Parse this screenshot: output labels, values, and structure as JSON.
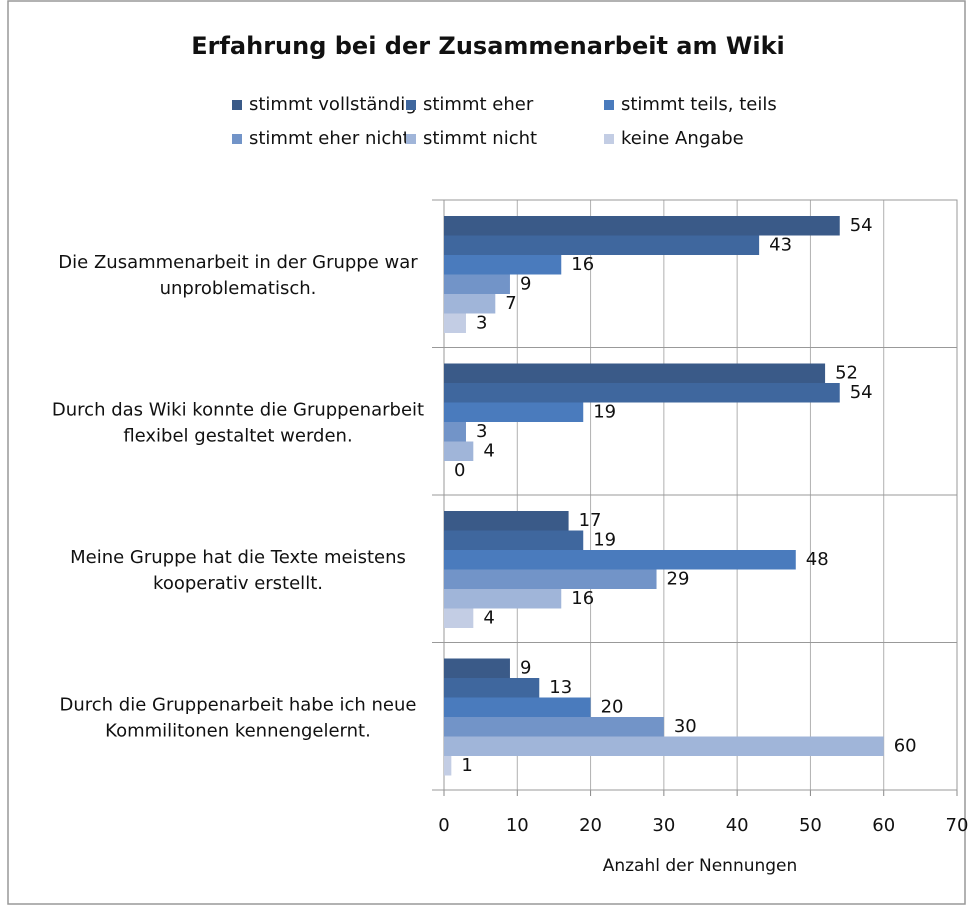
{
  "chart_data": {
    "type": "bar",
    "orientation": "horizontal",
    "title": "Erfahrung bei der Zusammenarbeit am Wiki",
    "x_label": "Anzahl der Nennungen",
    "categories": [
      "Die Zusammenarbeit in der Gruppe war\nunproblematisch.",
      "Durch das Wiki konnte die Gruppenarbeit\nflexibel gestaltet werden.",
      "Meine Gruppe hat die Texte meistens\nkooperativ erstellt.",
      "Durch die Gruppenarbeit habe ich neue\nKommilitonen kennengelernt."
    ],
    "series": [
      {
        "name": "stimmt vollständig",
        "color": "#3a5a88",
        "values": [
          54,
          52,
          17,
          9
        ]
      },
      {
        "name": "stimmt eher",
        "color": "#3f679e",
        "values": [
          43,
          54,
          19,
          13
        ]
      },
      {
        "name": "stimmt teils, teils",
        "color": "#4a7bbd",
        "values": [
          16,
          19,
          48,
          20
        ]
      },
      {
        "name": "stimmt eher nicht",
        "color": "#7294c8",
        "values": [
          9,
          3,
          29,
          30
        ]
      },
      {
        "name": "stimmt nicht",
        "color": "#a0b5d9",
        "values": [
          7,
          4,
          16,
          60
        ]
      },
      {
        "name": "keine Angabe",
        "color": "#c3cde4",
        "values": [
          3,
          0,
          4,
          1
        ]
      }
    ],
    "xlim": [
      0,
      70
    ],
    "xticks": [
      0,
      10,
      20,
      30,
      40,
      50,
      60,
      70
    ],
    "grid": true
  }
}
